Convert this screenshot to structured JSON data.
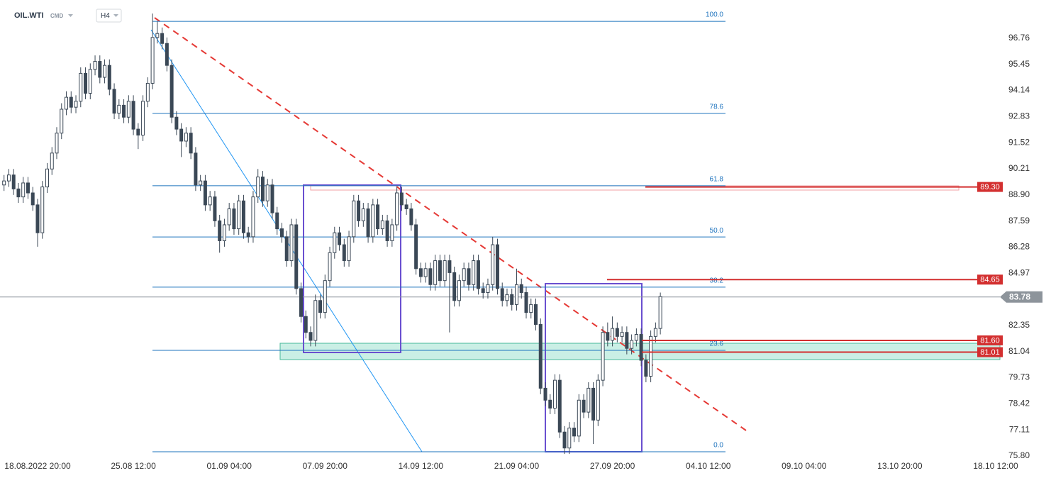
{
  "header": {
    "symbol": "OIL.WTI",
    "market": "CMD",
    "interval": "H4"
  },
  "chart_data": {
    "type": "candlestick",
    "categories": [
      null,
      null,
      null,
      null,
      null,
      null,
      null,
      "18.08.2022 20:00",
      null,
      null,
      null,
      null,
      null,
      null,
      null,
      null,
      null,
      null,
      null,
      null,
      null,
      null,
      null,
      null,
      null,
      null,
      null,
      "25.08 12:00",
      null,
      null,
      null,
      null,
      null,
      null,
      null,
      null,
      null,
      null,
      null,
      null,
      null,
      null,
      null,
      null,
      null,
      null,
      null,
      "01.09 04:00",
      null,
      null,
      null,
      null,
      null,
      null,
      null,
      null,
      null,
      null,
      null,
      null,
      null,
      null,
      null,
      null,
      null,
      null,
      null,
      "07.09 20:00",
      null,
      null,
      null,
      null,
      null,
      null,
      null,
      null,
      null,
      null,
      null,
      null,
      null,
      null,
      null,
      null,
      null,
      null,
      null,
      "14.09 12:00",
      null,
      null,
      null,
      null,
      null,
      null,
      null,
      null,
      null,
      null,
      null,
      null,
      null,
      null,
      null,
      null,
      null,
      null,
      null,
      "21.09 04:00",
      null,
      null,
      null,
      null,
      null,
      null,
      null,
      null,
      null,
      null,
      null,
      null,
      null,
      null,
      null,
      null,
      null,
      null,
      null,
      "27.09 20:00",
      null,
      null,
      null,
      null,
      null,
      null,
      null,
      null,
      null,
      null,
      null,
      null,
      null,
      null,
      null,
      null,
      null,
      null,
      null,
      "04.10 12:00",
      null,
      null,
      null,
      null,
      null,
      null,
      null,
      null,
      null,
      null,
      null,
      null,
      null,
      null,
      null,
      null,
      null,
      null,
      null,
      "09.10 04:00",
      null,
      null,
      null,
      null,
      null,
      null,
      null,
      null,
      null,
      null,
      null,
      null,
      null,
      null,
      null,
      null,
      null,
      null,
      null,
      "13.10 20:00",
      null,
      null,
      null,
      null,
      null,
      null,
      null,
      null,
      null,
      null,
      null,
      null,
      null,
      null,
      null,
      null,
      null,
      null,
      null,
      "18.10 12:00",
      null
    ],
    "open": [
      89.4,
      89.6,
      89.9,
      89.2,
      88.8,
      89.5,
      89.0,
      88.4,
      87.0,
      89.3,
      90.2,
      91.0,
      92.0,
      93.2,
      93.8,
      93.3,
      93.6,
      95.0,
      94.0,
      95.2,
      95.6,
      94.8,
      95.4,
      94.2,
      93.0,
      93.4,
      92.8,
      93.6,
      92.2,
      91.9,
      93.6,
      94.5,
      96.8,
      97.0,
      96.5,
      95.4,
      92.8,
      92.2,
      91.6,
      92.0,
      91.0,
      89.4,
      89.6,
      88.4,
      88.8,
      87.6,
      86.6,
      87.4,
      88.2,
      87.2,
      88.6,
      87.0,
      86.8,
      88.8,
      89.8,
      88.6,
      89.4,
      88.0,
      87.2,
      86.8,
      85.6,
      87.4,
      84.2,
      82.8,
      82.0,
      81.6,
      83.6,
      83.0,
      84.6,
      86.0,
      87.0,
      86.4,
      85.6,
      86.8,
      88.6,
      87.6,
      88.2,
      86.8,
      88.4,
      87.2,
      87.6,
      86.6,
      87.4,
      89.0,
      88.4,
      88.2,
      87.4,
      85.2,
      84.8,
      85.2,
      84.4,
      85.6,
      84.6,
      85.6,
      85.0,
      83.6,
      84.6,
      85.2,
      84.4,
      85.6,
      84.2,
      84.0,
      84.4,
      86.4,
      84.2,
      83.6,
      83.9,
      83.4,
      84.4,
      84.0,
      83.0,
      83.4,
      82.4,
      79.2,
      78.6,
      78.2,
      79.6,
      77.0,
      76.2,
      77.2,
      76.8,
      78.6,
      78.0,
      79.2,
      77.6,
      79.6,
      82.0,
      81.6,
      82.2,
      81.8,
      82.0,
      81.2,
      81.6,
      81.9,
      80.6,
      79.8,
      81.8,
      82.2,
      null,
      null,
      null,
      null,
      null,
      null,
      null,
      null,
      null,
      null,
      null,
      null,
      null,
      null,
      null,
      null,
      null,
      null,
      null,
      null,
      null,
      null,
      null,
      null,
      null,
      null,
      null,
      null,
      null,
      null,
      null,
      null,
      null,
      null,
      null,
      null,
      null,
      null,
      null,
      null,
      null,
      null,
      null,
      null,
      null,
      null,
      null,
      null,
      null,
      null,
      null,
      null,
      null,
      null,
      null,
      null,
      null,
      null,
      null,
      null,
      null,
      null,
      null,
      null,
      null,
      null,
      null,
      null,
      null,
      null,
      null
    ],
    "high": [
      89.9,
      90.2,
      90.2,
      89.5,
      89.8,
      89.8,
      89.3,
      88.7,
      89.6,
      90.5,
      91.3,
      92.3,
      93.5,
      94.1,
      94.1,
      93.9,
      95.3,
      95.3,
      95.5,
      95.9,
      95.9,
      95.7,
      95.7,
      94.5,
      93.7,
      93.7,
      93.9,
      93.9,
      92.5,
      93.9,
      94.8,
      98.0,
      97.6,
      97.3,
      96.8,
      95.7,
      93.1,
      92.5,
      92.3,
      92.3,
      91.3,
      89.9,
      89.9,
      89.1,
      89.1,
      87.9,
      87.7,
      88.5,
      88.5,
      88.9,
      88.9,
      87.3,
      89.1,
      90.2,
      90.1,
      89.7,
      89.7,
      88.3,
      87.5,
      87.1,
      87.7,
      87.7,
      84.5,
      83.1,
      82.3,
      83.9,
      83.9,
      84.9,
      86.3,
      87.3,
      87.3,
      86.7,
      87.1,
      88.9,
      88.9,
      88.5,
      88.5,
      88.7,
      88.7,
      87.9,
      87.9,
      87.7,
      89.3,
      89.3,
      88.7,
      88.5,
      87.7,
      85.5,
      85.5,
      85.5,
      85.9,
      85.9,
      85.9,
      85.9,
      85.3,
      84.9,
      85.5,
      85.5,
      85.9,
      85.9,
      84.5,
      84.7,
      86.8,
      86.7,
      84.5,
      84.2,
      84.2,
      85.2,
      84.7,
      84.3,
      83.7,
      83.7,
      82.7,
      79.5,
      78.9,
      79.9,
      79.9,
      77.3,
      77.5,
      77.5,
      78.9,
      78.9,
      79.5,
      79.5,
      79.9,
      82.3,
      82.5,
      82.8,
      82.5,
      82.3,
      82.3,
      81.9,
      82.2,
      82.2,
      80.9,
      82.1,
      82.5,
      84.0,
      null,
      null,
      null,
      null,
      null,
      null,
      null,
      null,
      null,
      null,
      null,
      null,
      null,
      null,
      null,
      null,
      null,
      null,
      null,
      null,
      null,
      null,
      null,
      null,
      null,
      null,
      null,
      null,
      null,
      null,
      null,
      null,
      null,
      null,
      null,
      null,
      null,
      null,
      null,
      null,
      null,
      null,
      null,
      null,
      null,
      null,
      null,
      null,
      null,
      null,
      null,
      null,
      null,
      null,
      null,
      null,
      null,
      null,
      null,
      null,
      null,
      null,
      null,
      null,
      null,
      null,
      null,
      null,
      null,
      null,
      null
    ],
    "low": [
      89.1,
      89.3,
      88.9,
      88.5,
      88.5,
      88.7,
      88.1,
      86.3,
      86.7,
      89.0,
      89.9,
      90.7,
      91.7,
      92.9,
      93.0,
      93.0,
      93.3,
      93.7,
      93.7,
      94.9,
      94.5,
      94.5,
      93.9,
      92.7,
      92.7,
      92.5,
      92.5,
      91.9,
      91.2,
      91.6,
      93.3,
      94.2,
      96.5,
      96.2,
      95.1,
      92.5,
      91.9,
      90.8,
      91.3,
      90.7,
      89.1,
      89.1,
      88.1,
      88.1,
      87.3,
      86.0,
      86.3,
      87.1,
      86.9,
      86.9,
      86.7,
      86.5,
      86.5,
      88.5,
      88.3,
      88.3,
      87.7,
      86.9,
      86.5,
      85.3,
      85.3,
      83.9,
      82.5,
      81.7,
      81.3,
      81.3,
      82.7,
      82.7,
      84.3,
      85.7,
      86.1,
      85.3,
      85.3,
      86.5,
      87.3,
      87.3,
      86.5,
      86.5,
      86.9,
      86.9,
      86.3,
      86.3,
      87.1,
      88.1,
      87.9,
      87.1,
      84.9,
      84.5,
      84.5,
      84.1,
      84.1,
      84.3,
      84.3,
      82.0,
      83.3,
      83.3,
      84.3,
      84.1,
      84.1,
      83.9,
      83.7,
      83.7,
      84.1,
      83.9,
      83.3,
      83.3,
      83.1,
      83.1,
      83.7,
      82.7,
      82.7,
      82.1,
      78.9,
      78.3,
      77.9,
      77.9,
      76.7,
      75.9,
      75.9,
      76.5,
      76.5,
      77.7,
      77.7,
      76.4,
      77.3,
      79.3,
      81.3,
      81.3,
      81.5,
      81.5,
      80.9,
      80.9,
      81.3,
      80.3,
      79.5,
      79.5,
      81.5,
      81.9,
      null,
      null,
      null,
      null,
      null,
      null,
      null,
      null,
      null,
      null,
      null,
      null,
      null,
      null,
      null,
      null,
      null,
      null,
      null,
      null,
      null,
      null,
      null,
      null,
      null,
      null,
      null,
      null,
      null,
      null,
      null,
      null,
      null,
      null,
      null,
      null,
      null,
      null,
      null,
      null,
      null,
      null,
      null,
      null,
      null,
      null,
      null,
      null,
      null,
      null,
      null,
      null,
      null,
      null,
      null,
      null,
      null,
      null,
      null,
      null,
      null,
      null,
      null,
      null,
      null,
      null,
      null,
      null,
      null,
      null,
      null
    ],
    "close": [
      89.6,
      89.9,
      89.2,
      88.8,
      89.5,
      89.0,
      88.4,
      87.0,
      89.3,
      90.2,
      91.0,
      92.0,
      93.2,
      93.8,
      93.3,
      93.6,
      95.0,
      94.0,
      95.2,
      95.6,
      94.8,
      95.4,
      94.2,
      93.0,
      93.4,
      92.8,
      93.6,
      92.2,
      91.9,
      93.6,
      94.5,
      96.8,
      97.0,
      96.5,
      95.4,
      92.8,
      92.2,
      91.6,
      92.0,
      91.0,
      89.4,
      89.6,
      88.4,
      88.8,
      87.6,
      86.6,
      87.4,
      88.2,
      87.2,
      88.6,
      87.0,
      86.8,
      88.8,
      89.8,
      88.6,
      89.4,
      88.0,
      87.2,
      86.8,
      85.6,
      87.4,
      84.2,
      82.8,
      82.0,
      81.6,
      83.6,
      83.0,
      84.6,
      86.0,
      87.0,
      86.4,
      85.6,
      86.8,
      88.6,
      87.6,
      88.2,
      86.8,
      88.4,
      87.2,
      87.6,
      86.6,
      87.4,
      89.0,
      88.4,
      88.2,
      87.4,
      85.2,
      84.8,
      85.2,
      84.4,
      85.6,
      84.6,
      85.6,
      85.0,
      83.6,
      84.6,
      85.2,
      84.4,
      85.6,
      84.2,
      84.0,
      84.4,
      86.4,
      84.2,
      83.6,
      83.9,
      83.4,
      84.4,
      84.0,
      83.0,
      83.4,
      82.4,
      79.2,
      78.6,
      78.2,
      79.6,
      77.0,
      76.2,
      77.2,
      76.8,
      78.6,
      78.0,
      79.2,
      77.6,
      79.6,
      82.0,
      81.6,
      82.2,
      81.8,
      82.0,
      81.2,
      81.6,
      81.9,
      80.6,
      79.8,
      81.8,
      82.2,
      83.8,
      null,
      null,
      null,
      null,
      null,
      null,
      null,
      null,
      null,
      null,
      null,
      null,
      null,
      null,
      null,
      null,
      null,
      null,
      null,
      null,
      null,
      null,
      null,
      null,
      null,
      null,
      null,
      null,
      null,
      null,
      null,
      null,
      null,
      null,
      null,
      null,
      null,
      null,
      null,
      null,
      null,
      null,
      null,
      null,
      null,
      null,
      null,
      null,
      null,
      null,
      null,
      null,
      null,
      null,
      null,
      null,
      null,
      null,
      null,
      null,
      null,
      null,
      null,
      null,
      null,
      null,
      null,
      null,
      null,
      null,
      null
    ],
    "up_color": "#ffffff",
    "down_color": "#3b4856",
    "ylim": [
      75.62,
      98.68
    ],
    "yticks": [
      96.76,
      95.45,
      94.14,
      92.83,
      91.52,
      90.21,
      {
        "value": 88.9,
        "label": "88.90"
      },
      87.59,
      86.28,
      84.97,
      82.35,
      81.04,
      79.73,
      78.42,
      77.11,
      {
        "value": 75.8,
        "label": "75.80"
      }
    ],
    "fibonacci": {
      "color": "#1e73be",
      "levels": [
        {
          "label": "100.0",
          "price": 97.61
        },
        {
          "label": "78.6",
          "price": 92.99
        },
        {
          "label": "61.8",
          "price": 89.36
        },
        {
          "label": "50.0",
          "price": 86.79
        },
        {
          "label": "38.2",
          "price": 84.27
        },
        {
          "label": "23.6",
          "price": 81.1
        },
        {
          "label": "0.0",
          "price": 76.01
        }
      ]
    },
    "price_levels": {
      "color": "#d32f2f",
      "levels": [
        {
          "value": 89.3,
          "label": "89.30"
        },
        84.65,
        {
          "value": 81.6,
          "label": "81.60"
        },
        81.01
      ]
    },
    "last_price": 83.78,
    "last_price_color": "#8d949b"
  }
}
